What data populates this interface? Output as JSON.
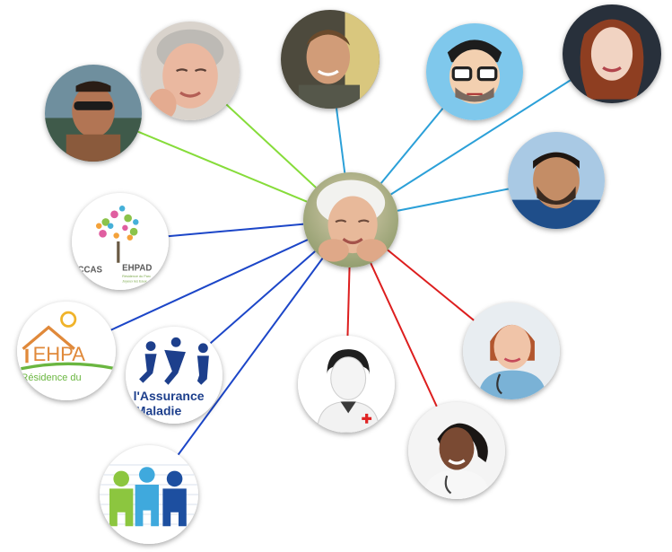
{
  "colors": {
    "family": "#86dc3a",
    "friends": "#2ba0d8",
    "services": "#1c46c8",
    "medical": "#dd1e1e"
  },
  "logos": {
    "ccas": {
      "left": "CCAS",
      "right": "EHPAD",
      "small1": "Résidence du Parc",
      "small2": "Joyeux les Eaux"
    },
    "ehpad": {
      "title": "EHPA",
      "subtitle": "Résidence du"
    },
    "assurance": {
      "line1": "l'Assurance",
      "line2": "Maladie"
    }
  }
}
